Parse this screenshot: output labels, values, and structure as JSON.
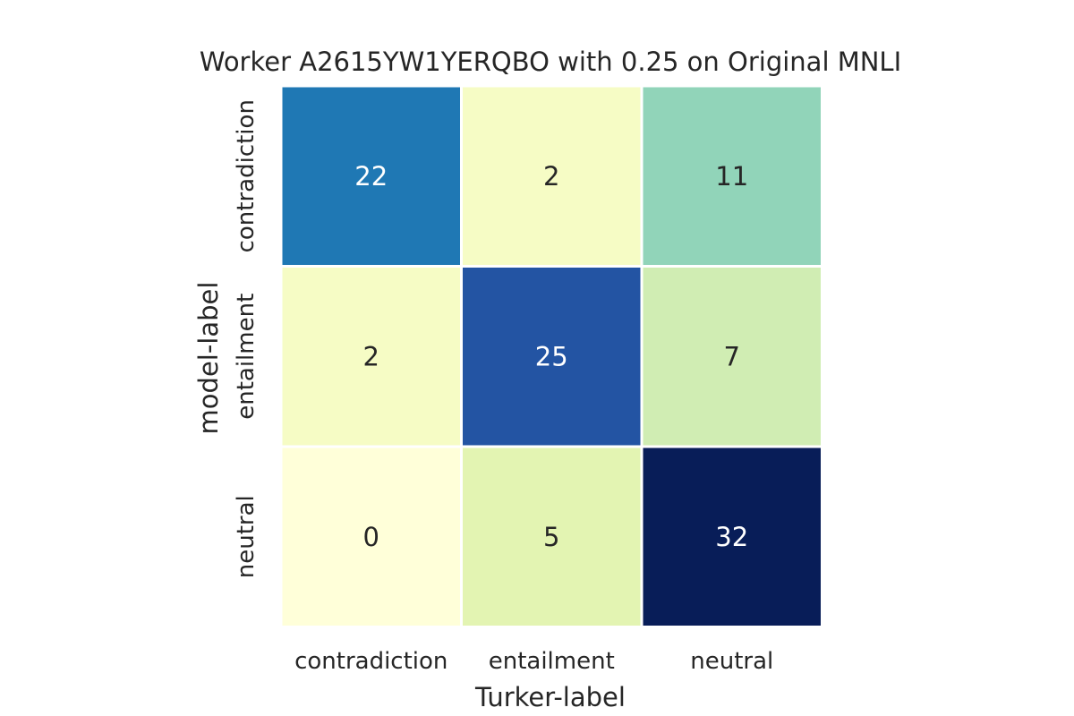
{
  "chart_data": {
    "type": "heatmap",
    "title": "Worker A2615YW1YERQBO with 0.25 on Original MNLI",
    "xlabel": "Turker-label",
    "ylabel": "model-label",
    "x_categories": [
      "contradiction",
      "entailment",
      "neutral"
    ],
    "y_categories": [
      "contradiction",
      "entailment",
      "neutral"
    ],
    "values": [
      [
        22,
        2,
        11
      ],
      [
        2,
        25,
        7
      ],
      [
        0,
        5,
        32
      ]
    ],
    "colormap": "YlGnBu",
    "value_range": [
      0,
      32
    ],
    "colorbar": false,
    "annotated": true
  }
}
